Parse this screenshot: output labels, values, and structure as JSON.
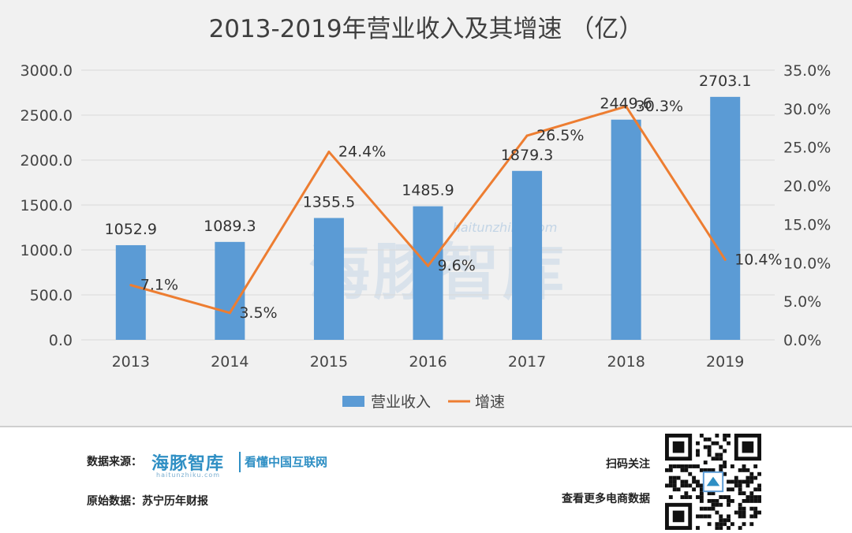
{
  "chart_data": {
    "type": "bar+line",
    "title": "2013-2019年营业收入及其增速 （亿）",
    "categories": [
      "2013",
      "2014",
      "2015",
      "2016",
      "2017",
      "2018",
      "2019"
    ],
    "series": [
      {
        "name": "营业收入",
        "type": "bar",
        "axis": "left",
        "values": [
          1052.9,
          1089.3,
          1355.5,
          1485.9,
          1879.3,
          2449.6,
          2703.1
        ],
        "labels": [
          "1052.9",
          "1089.3",
          "1355.5",
          "1485.9",
          "1879.3",
          "2449.6",
          "2703.1"
        ]
      },
      {
        "name": "增速",
        "type": "line",
        "axis": "right",
        "values": [
          7.1,
          3.5,
          24.4,
          9.6,
          26.5,
          30.3,
          10.4
        ],
        "labels": [
          "7.1%",
          "3.5%",
          "24.4%",
          "9.6%",
          "26.5%",
          "30.3%",
          "10.4%"
        ]
      }
    ],
    "left_axis": {
      "ylim": [
        0,
        3000
      ],
      "ticks": [
        "0.0",
        "500.0",
        "1000.0",
        "1500.0",
        "2000.0",
        "2500.0",
        "3000.0"
      ]
    },
    "right_axis": {
      "ylim": [
        0,
        35
      ],
      "ticks": [
        "0.0%",
        "5.0%",
        "10.0%",
        "15.0%",
        "20.0%",
        "25.0%",
        "30.0%",
        "35.0%"
      ]
    },
    "grid": true,
    "legend_position": "bottom"
  },
  "colors": {
    "bar": "#5b9bd5",
    "line": "#ed7d31",
    "grid": "#d9d9d9"
  },
  "watermark": {
    "text": "海豚智库",
    "site": "haitunzhiku.com"
  },
  "footer": {
    "source_label": "数据来源：",
    "logo_main": "海豚智库",
    "logo_sub": "haitunzhiku.com",
    "logo_tagline": "看懂中国互联网",
    "original_label": "原始数据：苏宁历年财报",
    "scan_label": "扫码关注",
    "more_label": "查看更多电商数据",
    "qr_icon": "qr-code-icon"
  }
}
